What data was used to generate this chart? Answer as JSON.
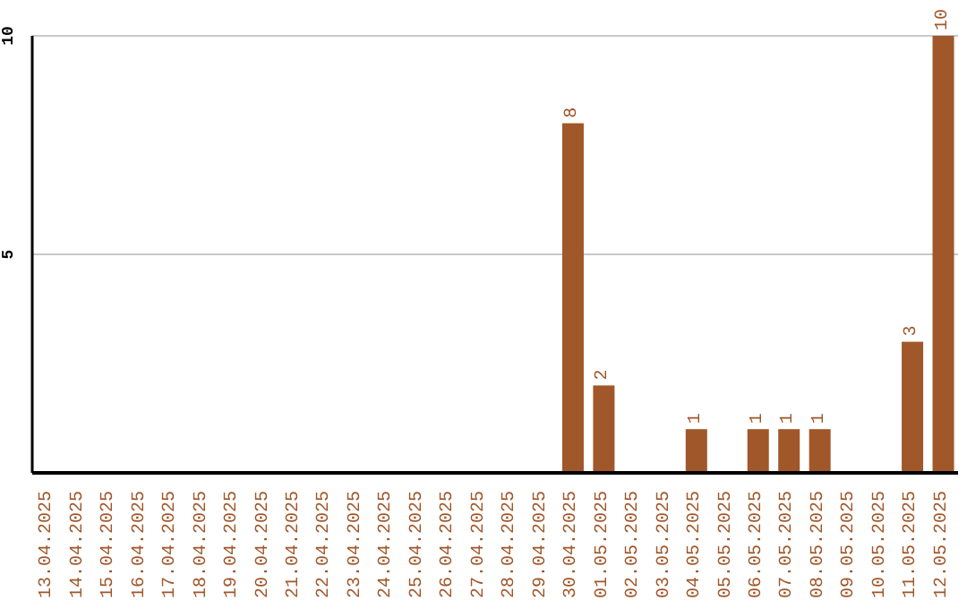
{
  "chart_data": {
    "type": "bar",
    "categories": [
      "13.04.2025",
      "14.04.2025",
      "15.04.2025",
      "16.04.2025",
      "17.04.2025",
      "18.04.2025",
      "19.04.2025",
      "20.04.2025",
      "21.04.2025",
      "22.04.2025",
      "23.04.2025",
      "24.04.2025",
      "25.04.2025",
      "26.04.2025",
      "27.04.2025",
      "28.04.2025",
      "29.04.2025",
      "30.04.2025",
      "01.05.2025",
      "02.05.2025",
      "03.05.2025",
      "04.05.2025",
      "05.05.2025",
      "06.05.2025",
      "07.05.2025",
      "08.05.2025",
      "09.05.2025",
      "10.05.2025",
      "11.05.2025",
      "12.05.2025"
    ],
    "values": [
      0,
      0,
      0,
      0,
      0,
      0,
      0,
      0,
      0,
      0,
      0,
      0,
      0,
      0,
      0,
      0,
      0,
      8,
      2,
      0,
      0,
      1,
      0,
      1,
      1,
      1,
      0,
      0,
      3,
      10
    ],
    "value_labels": [
      null,
      null,
      null,
      null,
      null,
      null,
      null,
      null,
      null,
      null,
      null,
      null,
      null,
      null,
      null,
      null,
      null,
      "8",
      "2",
      null,
      null,
      "1",
      null,
      "1",
      "1",
      "1",
      null,
      null,
      "3",
      "10"
    ],
    "color": "#a0572a",
    "ylim": [
      0,
      10
    ],
    "yticks": [
      5,
      10
    ],
    "grid": "y"
  }
}
